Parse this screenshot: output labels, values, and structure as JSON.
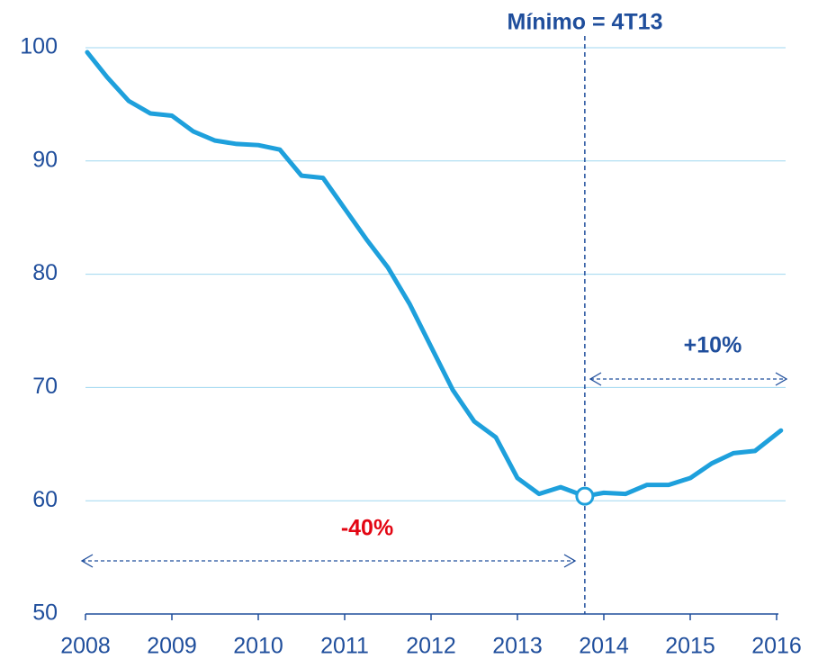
{
  "chart_data": {
    "type": "line",
    "annotations": [
      "Mínimo = 4T13",
      "+10%",
      "-40%"
    ],
    "x": [
      2008.02,
      2008.25,
      2008.5,
      2008.75,
      2009.0,
      2009.25,
      2009.5,
      2009.75,
      2010.0,
      2010.25,
      2010.5,
      2010.75,
      2011.0,
      2011.25,
      2011.5,
      2011.75,
      2012.0,
      2012.25,
      2012.5,
      2012.75,
      2013.0,
      2013.25,
      2013.5,
      2013.78,
      2014.0,
      2014.25,
      2014.5,
      2014.75,
      2015.0,
      2015.25,
      2015.5,
      2015.75,
      2016.05
    ],
    "values": [
      99.6,
      97.4,
      95.3,
      94.2,
      94.0,
      92.6,
      91.8,
      91.5,
      91.4,
      91.0,
      88.7,
      88.5,
      85.8,
      83.1,
      80.6,
      77.4,
      73.6,
      69.8,
      67.0,
      65.6,
      62.0,
      60.6,
      61.2,
      60.4,
      60.7,
      60.6,
      61.4,
      61.4,
      62.0,
      63.3,
      64.2,
      64.4,
      66.2
    ],
    "color": "#1ea0dc",
    "xlim": [
      2008,
      2016
    ],
    "xticks": [
      2008,
      2009,
      2010,
      2011,
      2012,
      2013,
      2014,
      2015,
      2016
    ],
    "ylim": [
      50,
      100
    ],
    "yticks": [
      50,
      60,
      70,
      80,
      90,
      100
    ],
    "grid": true
  }
}
